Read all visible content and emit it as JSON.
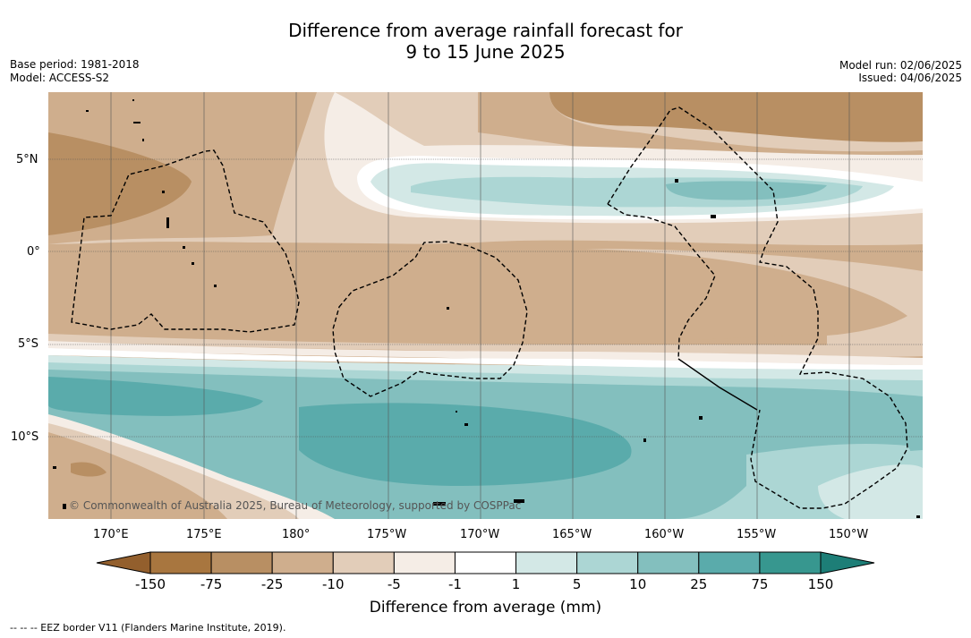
{
  "title_line1": "Difference from average rainfall forecast for",
  "title_line2": "9 to 15 June 2025",
  "base_period": "Base period: 1981-2018",
  "model": "Model: ACCESS-S2",
  "model_run": "Model run: 02/06/2025",
  "issued": "Issued: 04/06/2025",
  "lat_ticks": [
    "5°N",
    "0°",
    "5°S",
    "10°S"
  ],
  "lon_ticks": [
    "170°E",
    "175°E",
    "180°",
    "175°W",
    "170°W",
    "165°W",
    "160°W",
    "155°W",
    "150°W"
  ],
  "copyright": "© Commonwealth of Australia 2025, Bureau of Meteorology, supported by COSPPac",
  "colorbar": {
    "labels": [
      "-150",
      "-75",
      "-25",
      "-10",
      "-5",
      "-1",
      "1",
      "5",
      "10",
      "25",
      "75",
      "150"
    ],
    "colors": [
      "#a8763f",
      "#b88f63",
      "#cfae8d",
      "#e2cdb9",
      "#f5ede6",
      "#ffffff",
      "#d3e8e6",
      "#acd6d4",
      "#83bfbe",
      "#5aabab",
      "#37978f"
    ],
    "under_color": "#935f2d",
    "over_color": "#1d7e77",
    "title": "Difference from average (mm)"
  },
  "footer": "--  --  -- EEZ border V11 (Flanders Marine Institute, 2019)."
}
